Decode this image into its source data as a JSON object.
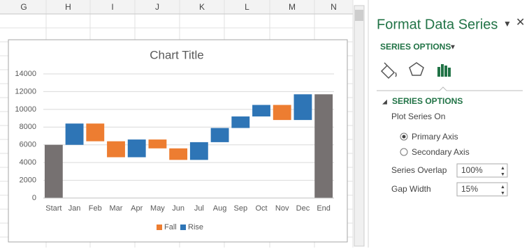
{
  "sheet": {
    "columns": [
      "G",
      "H",
      "I",
      "J",
      "K",
      "L",
      "M",
      "N"
    ]
  },
  "chart_data": {
    "type": "waterfall",
    "title": "Chart Title",
    "categories": [
      "Start",
      "Jan",
      "Feb",
      "Mar",
      "Apr",
      "May",
      "Jun",
      "Jul",
      "Aug",
      "Sep",
      "Oct",
      "Nov",
      "Dec",
      "End"
    ],
    "totals": {
      "color": "#767171",
      "values": [
        6000,
        null,
        null,
        null,
        null,
        null,
        null,
        null,
        null,
        null,
        null,
        null,
        null,
        11700
      ]
    },
    "series": [
      {
        "name": "Fall",
        "color": "#ed7d31",
        "values": [
          null,
          null,
          2000,
          1800,
          null,
          1000,
          1300,
          null,
          null,
          null,
          null,
          1700,
          null,
          null
        ]
      },
      {
        "name": "Rise",
        "color": "#2e75b6",
        "values": [
          null,
          2400,
          null,
          null,
          2000,
          null,
          null,
          2000,
          1600,
          1300,
          1300,
          null,
          2900,
          null
        ]
      }
    ],
    "ylim": [
      0,
      14000
    ],
    "yticks": [
      0,
      2000,
      4000,
      6000,
      8000,
      10000,
      12000,
      14000
    ],
    "grid": true,
    "legend": "bottom"
  },
  "panel": {
    "title": "Format Data Series",
    "dropdown": "SERIES OPTIONS",
    "section": "SERIES OPTIONS",
    "plot_on": "Plot Series On",
    "primary": "Primary Axis",
    "secondary": "Secondary Axis",
    "overlap_label": "Series Overlap",
    "overlap_value": "100%",
    "gap_label": "Gap Width",
    "gap_value": "15%"
  }
}
